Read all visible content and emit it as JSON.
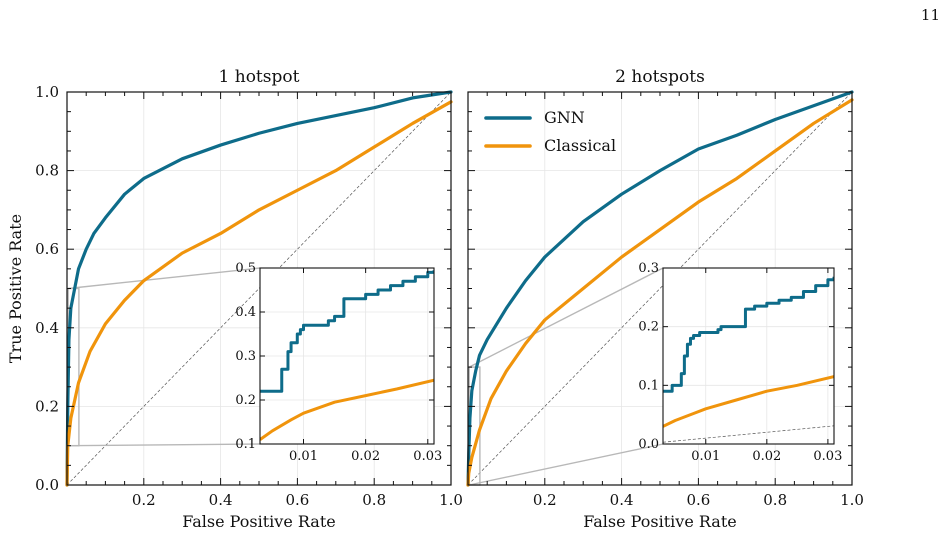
{
  "page": {
    "number": "11"
  },
  "colors": {
    "gnn": "#0e6c8a",
    "classical": "#f0940c",
    "diagonal": "#555555",
    "connector": "#b8b8b8",
    "grid": "#e6e6e6"
  },
  "chart_data": [
    {
      "type": "line",
      "title": "1 hotspot",
      "xlabel": "False Positive Rate",
      "ylabel": "True Positive Rate",
      "xlim": [
        0,
        1
      ],
      "ylim": [
        0,
        1
      ],
      "x_ticks": [
        "0.2",
        "0.4",
        "0.6",
        "0.8",
        "1.0"
      ],
      "y_ticks": [
        "0.0",
        "0.2",
        "0.4",
        "0.6",
        "0.8",
        "1.0"
      ],
      "grid": true,
      "series": [
        {
          "name": "GNN",
          "x": [
            0,
            0.002,
            0.005,
            0.01,
            0.02,
            0.03,
            0.05,
            0.07,
            0.1,
            0.15,
            0.2,
            0.3,
            0.4,
            0.5,
            0.6,
            0.7,
            0.8,
            0.9,
            1.0
          ],
          "y": [
            0,
            0.2,
            0.37,
            0.45,
            0.5,
            0.55,
            0.6,
            0.64,
            0.68,
            0.74,
            0.78,
            0.83,
            0.865,
            0.895,
            0.92,
            0.94,
            0.96,
            0.985,
            1.0
          ]
        },
        {
          "name": "Classical",
          "x": [
            0,
            0.002,
            0.01,
            0.03,
            0.06,
            0.1,
            0.15,
            0.2,
            0.3,
            0.4,
            0.5,
            0.6,
            0.7,
            0.8,
            0.9,
            1.0
          ],
          "y": [
            0,
            0.1,
            0.17,
            0.26,
            0.34,
            0.41,
            0.47,
            0.52,
            0.59,
            0.64,
            0.7,
            0.75,
            0.8,
            0.86,
            0.92,
            0.975
          ]
        }
      ],
      "inset": {
        "xlim": [
          0.003,
          0.031
        ],
        "ylim": [
          0.1,
          0.5
        ],
        "x_ticks": [
          "0.01",
          "0.02",
          "0.03"
        ],
        "y_ticks": [
          "0.1",
          "0.2",
          "0.3",
          "0.4",
          "0.5"
        ],
        "series": [
          {
            "name": "GNN",
            "x": [
              0.003,
              0.006,
              0.0065,
              0.0075,
              0.008,
              0.009,
              0.0095,
              0.01,
              0.011,
              0.012,
              0.014,
              0.015,
              0.016,
              0.0165,
              0.018,
              0.02,
              0.022,
              0.024,
              0.026,
              0.028,
              0.03,
              0.031
            ],
            "y": [
              0.22,
              0.22,
              0.27,
              0.31,
              0.33,
              0.35,
              0.36,
              0.37,
              0.37,
              0.37,
              0.38,
              0.39,
              0.39,
              0.43,
              0.43,
              0.44,
              0.45,
              0.46,
              0.47,
              0.48,
              0.49,
              0.495
            ]
          },
          {
            "name": "Classical",
            "x": [
              0.003,
              0.005,
              0.008,
              0.01,
              0.015,
              0.02,
              0.025,
              0.031
            ],
            "y": [
              0.11,
              0.13,
              0.155,
              0.17,
              0.195,
              0.21,
              0.225,
              0.245
            ]
          }
        ]
      }
    },
    {
      "type": "line",
      "title": "2 hotspots",
      "xlabel": "False Positive Rate",
      "ylabel": "",
      "xlim": [
        0,
        1
      ],
      "ylim": [
        0,
        1
      ],
      "x_ticks": [
        "0.2",
        "0.4",
        "0.6",
        "0.8",
        "1.0"
      ],
      "y_ticks": [],
      "grid": true,
      "legend": {
        "placement": "top-left",
        "entries": [
          "GNN",
          "Classical"
        ]
      },
      "series": [
        {
          "name": "GNN",
          "x": [
            0,
            0.002,
            0.005,
            0.01,
            0.02,
            0.03,
            0.05,
            0.1,
            0.15,
            0.2,
            0.3,
            0.4,
            0.5,
            0.6,
            0.7,
            0.8,
            0.9,
            1.0
          ],
          "y": [
            0,
            0.08,
            0.17,
            0.24,
            0.29,
            0.33,
            0.37,
            0.45,
            0.52,
            0.58,
            0.67,
            0.74,
            0.8,
            0.855,
            0.89,
            0.93,
            0.965,
            1.0
          ]
        },
        {
          "name": "Classical",
          "x": [
            0,
            0.002,
            0.01,
            0.03,
            0.06,
            0.1,
            0.15,
            0.2,
            0.3,
            0.4,
            0.5,
            0.6,
            0.7,
            0.8,
            0.9,
            1.0
          ],
          "y": [
            0,
            0.03,
            0.07,
            0.14,
            0.22,
            0.29,
            0.36,
            0.42,
            0.5,
            0.58,
            0.65,
            0.72,
            0.78,
            0.85,
            0.92,
            0.98
          ]
        }
      ],
      "inset": {
        "xlim": [
          0.003,
          0.031
        ],
        "ylim": [
          0.0,
          0.3
        ],
        "x_ticks": [
          "0.01",
          "0.02",
          "0.03"
        ],
        "y_ticks": [
          "0.0",
          "0.1",
          "0.2",
          "0.3"
        ],
        "series": [
          {
            "name": "GNN",
            "x": [
              0.003,
              0.004,
              0.0045,
              0.006,
              0.0065,
              0.007,
              0.0075,
              0.008,
              0.009,
              0.01,
              0.012,
              0.0125,
              0.013,
              0.016,
              0.0165,
              0.018,
              0.02,
              0.022,
              0.024,
              0.026,
              0.028,
              0.03,
              0.031
            ],
            "y": [
              0.09,
              0.09,
              0.1,
              0.12,
              0.15,
              0.17,
              0.18,
              0.185,
              0.19,
              0.19,
              0.195,
              0.2,
              0.2,
              0.2,
              0.23,
              0.235,
              0.24,
              0.245,
              0.25,
              0.26,
              0.27,
              0.28,
              0.285
            ]
          },
          {
            "name": "Classical",
            "x": [
              0.003,
              0.005,
              0.008,
              0.01,
              0.015,
              0.02,
              0.025,
              0.031
            ],
            "y": [
              0.03,
              0.04,
              0.052,
              0.06,
              0.075,
              0.09,
              0.1,
              0.115
            ]
          }
        ]
      }
    }
  ]
}
